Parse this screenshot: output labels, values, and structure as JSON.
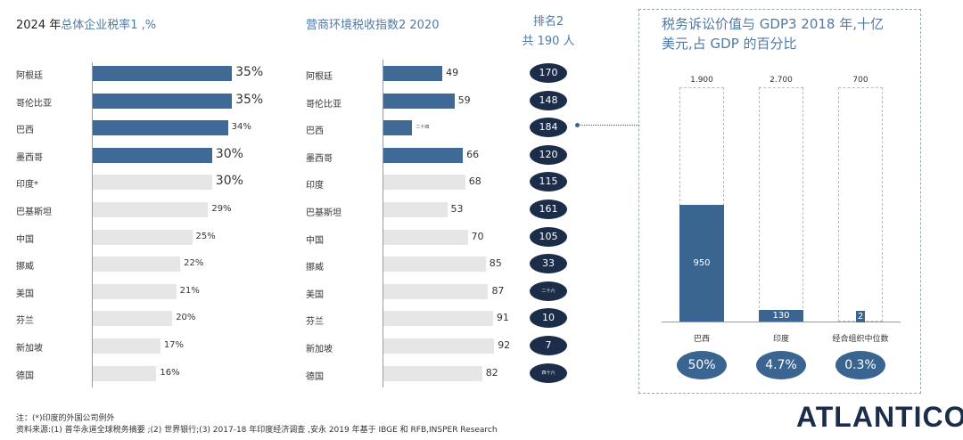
{
  "chart_data": [
    {
      "type": "bar",
      "orientation": "horizontal",
      "title_prefix": "2024 年",
      "title": "总体企业税率1 ,%",
      "categories": [
        "阿根廷",
        "哥伦比亚",
        "巴西",
        "墨西哥",
        "印度*",
        "巴基斯坦",
        "中国",
        "挪威",
        "美国",
        "芬兰",
        "新加坡",
        "德国"
      ],
      "values": [
        35,
        35,
        34,
        30,
        30,
        29,
        25,
        22,
        21,
        20,
        17,
        16
      ],
      "labels": [
        "35%",
        "35%",
        "34%",
        "30%",
        "30%",
        "29%",
        "25%",
        "22%",
        "21%",
        "20%",
        "17%",
        "16%"
      ],
      "highlighted": [
        true,
        true,
        true,
        true,
        false,
        false,
        false,
        false,
        false,
        false,
        false,
        false
      ]
    },
    {
      "type": "bar",
      "orientation": "horizontal",
      "title": "营商环境税收指数2 2020",
      "categories": [
        "阿根廷",
        "哥伦比亚",
        "巴西",
        "墨西哥",
        "印度",
        "巴基斯坦",
        "中国",
        "挪威",
        "美国",
        "芬兰",
        "新加坡",
        "德国"
      ],
      "values": [
        49,
        59,
        24,
        66,
        68,
        53,
        70,
        85,
        87,
        91,
        92,
        82
      ],
      "labels": [
        "49",
        "59",
        "二十四",
        "66",
        "68",
        "53",
        "70",
        "85",
        "87",
        "91",
        "92",
        "82"
      ],
      "highlighted": [
        true,
        true,
        true,
        true,
        false,
        false,
        false,
        false,
        false,
        false,
        false,
        false
      ],
      "rank_title": [
        "排名2",
        "共 190 人"
      ],
      "ranks": [
        "170",
        "148",
        "184",
        "120",
        "115",
        "161",
        "105",
        "33",
        "二十六",
        "10",
        "7",
        "四十六"
      ]
    },
    {
      "type": "bar",
      "orientation": "vertical",
      "title": "税务诉讼价值与 GDP3 2018 年,十亿美元,占 GDP 的百分比",
      "categories": [
        "巴西",
        "印度",
        "经合组织中位数"
      ],
      "totals": [
        1900,
        2700,
        700
      ],
      "total_labels": [
        "1.900",
        "2.700",
        "700"
      ],
      "values": [
        950,
        130,
        2
      ],
      "value_labels": [
        "950",
        "130",
        "2"
      ],
      "percent_of_gdp": [
        "50%",
        "4.7%",
        "0.3%"
      ]
    }
  ],
  "colors": {
    "highlight": "#3f6a96",
    "neutral": "#e6e6e6",
    "rank": "#1c2d4a",
    "accent": "#3a6591"
  },
  "footer": {
    "note": "注：(*)印度的外国公司例外",
    "source": "资料来源:(1) 普华永道全球税务摘要 ;(2) 世界银行;(3) 2017-18 年印度经济调查 ,安永 2019 年基于 IBGE 和 RFB,INSPER Research"
  },
  "logo": "ATLANTICO"
}
